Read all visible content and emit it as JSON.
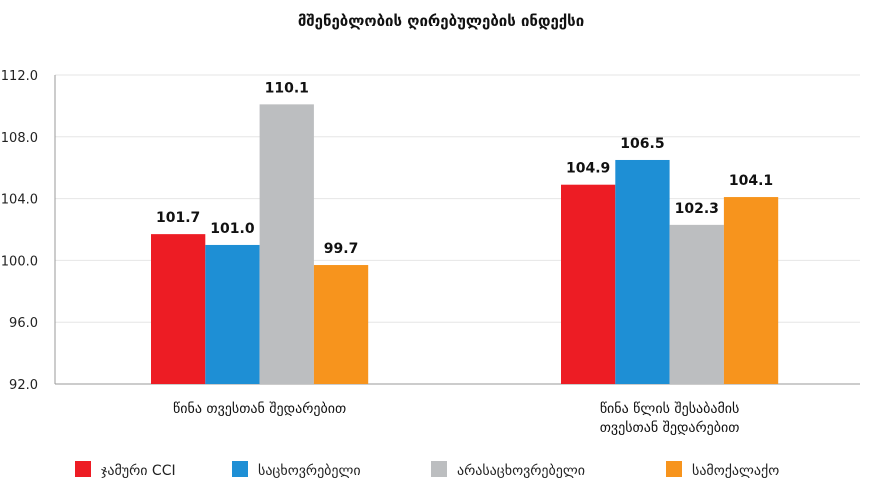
{
  "chart_data": {
    "type": "bar",
    "title": "მშენებლობის ღირებულების ინდექსი",
    "categories": [
      [
        "წინა თვესთან შედარებით"
      ],
      [
        "წინა წლის შესაბამის",
        "თვესთან შედარებით"
      ]
    ],
    "series": [
      {
        "name": "ჯამური CCI",
        "color": "#ED1C24",
        "values": [
          101.7,
          104.9
        ]
      },
      {
        "name": "საცხოვრებელი",
        "color": "#1E8FD5",
        "values": [
          101.0,
          106.5
        ]
      },
      {
        "name": "არასაცხოვრებელი",
        "color": "#BCBEC0",
        "values": [
          110.1,
          102.3
        ]
      },
      {
        "name": "სამოქალაქო",
        "color": "#F7941D",
        "values": [
          99.7,
          104.1
        ]
      }
    ],
    "ylim": [
      92,
      112
    ],
    "yticks": [
      "92.0",
      "96.0",
      "100.0",
      "104.0",
      "108.0",
      "112.0"
    ],
    "xlabel": "",
    "ylabel": "",
    "grid": true,
    "legend": "bottom"
  }
}
